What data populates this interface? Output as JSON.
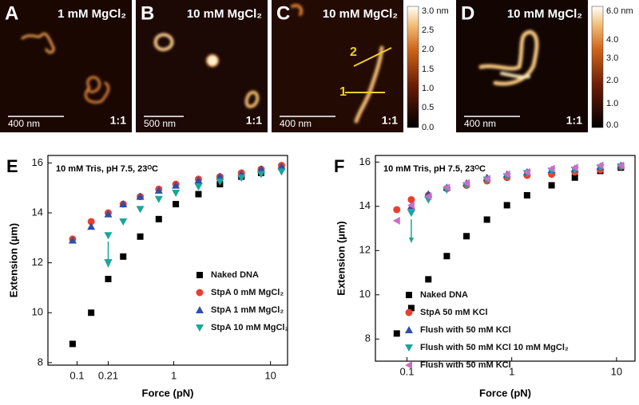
{
  "panels": [
    {
      "letter": "A",
      "condition": "1 mM MgCl₂",
      "scale_bar": "400 nm",
      "ratio": "1:1"
    },
    {
      "letter": "B",
      "condition": "10 mM MgCl₂",
      "scale_bar": "500 nm",
      "ratio": "1:1"
    },
    {
      "letter": "C",
      "condition": "10 mM MgCl₂",
      "scale_bar": "400 nm",
      "ratio": "1:1",
      "markers": [
        "1",
        "2"
      ]
    },
    {
      "letter": "D",
      "condition": "10 mM MgCl₂",
      "scale_bar": "400 nm",
      "ratio": "1:1"
    }
  ],
  "colorbars": [
    {
      "labels": [
        "3.0 nm",
        "2.5",
        "2.0",
        "1.5",
        "1.0",
        "0.5",
        "0.0"
      ]
    },
    {
      "labels": [
        "6.0 nm",
        "4.0",
        "3.0",
        "2.0",
        "1.0",
        "0.0"
      ]
    }
  ],
  "chart_data": [
    {
      "type": "scatter",
      "panel": "E",
      "subtitle": "10 mM Tris, pH 7.5, 23ᴼC",
      "x_label": "Force (pN)",
      "y_label": "Extension (µm)",
      "xscale": "log",
      "xlim": [
        0.05,
        15
      ],
      "xticks": [
        0.1,
        0.21,
        1,
        10
      ],
      "ylim": [
        7.9,
        16.3
      ],
      "yticks": [
        8,
        10,
        12,
        14,
        16
      ],
      "legend": "lower right",
      "series": [
        {
          "name": "Naked DNA",
          "color": "#000000",
          "marker": "square",
          "x": [
            0.09,
            0.14,
            0.21,
            0.3,
            0.45,
            0.7,
            1.05,
            1.8,
            3,
            5,
            8,
            13
          ],
          "values": [
            8.75,
            10.0,
            11.35,
            12.25,
            13.05,
            13.75,
            14.35,
            14.75,
            15.15,
            15.45,
            15.6,
            15.85
          ]
        },
        {
          "name": "StpA 0 mM MgCl₂",
          "color": "#e8402f",
          "marker": "circle",
          "x": [
            0.09,
            0.14,
            0.21,
            0.3,
            0.45,
            0.7,
            1.05,
            1.8,
            3,
            5,
            8,
            13
          ],
          "values": [
            12.95,
            13.65,
            14.0,
            14.35,
            14.65,
            14.95,
            15.15,
            15.35,
            15.45,
            15.6,
            15.75,
            15.9
          ]
        },
        {
          "name": "StpA 1 mM MgCl₂",
          "color": "#2f4ea8",
          "marker": "triangle",
          "x": [
            0.09,
            0.14,
            0.21,
            0.3,
            0.45,
            0.7,
            1.05,
            1.8,
            3,
            5,
            8,
            13
          ],
          "values": [
            12.9,
            13.45,
            13.95,
            14.35,
            14.65,
            14.9,
            15.1,
            15.3,
            15.45,
            15.55,
            15.75,
            15.85
          ]
        },
        {
          "name": "StpA 10 mM MgCl₂",
          "color": "#1aa59d",
          "marker": "triangle-down",
          "x": [
            0.21,
            0.3,
            0.45,
            0.7,
            1.05,
            1.8,
            3,
            5,
            8,
            13
          ],
          "values": [
            13.1,
            13.65,
            14.15,
            14.55,
            14.8,
            15.05,
            15.25,
            15.4,
            15.55,
            15.65
          ]
        }
      ]
    },
    {
      "type": "scatter",
      "panel": "F",
      "subtitle": "10 mM Tris, pH 7.5, 23ᴼC",
      "x_label": "Force (pN)",
      "y_label": "Extension (µm)",
      "xscale": "log",
      "xlim": [
        0.05,
        15
      ],
      "xticks": [
        0.1,
        1,
        10
      ],
      "ylim": [
        7,
        16.3
      ],
      "yticks": [
        8,
        10,
        12,
        14,
        16
      ],
      "legend": "lower right",
      "series": [
        {
          "name": "Naked DNA",
          "color": "#000000",
          "marker": "square",
          "x": [
            0.08,
            0.11,
            0.16,
            0.24,
            0.37,
            0.58,
            0.9,
            1.4,
            2.4,
            4,
            7,
            11
          ],
          "values": [
            8.25,
            9.4,
            10.7,
            11.75,
            12.65,
            13.4,
            14.05,
            14.5,
            14.95,
            15.3,
            15.6,
            15.75
          ]
        },
        {
          "name": "StpA 50 mM KCl",
          "color": "#e8402f",
          "marker": "circle",
          "x": [
            0.08,
            0.11,
            0.16,
            0.24,
            0.37,
            0.58,
            0.9,
            1.4,
            2.4,
            4,
            7,
            11
          ],
          "values": [
            13.85,
            14.3,
            14.5,
            14.8,
            14.95,
            15.15,
            15.3,
            15.4,
            15.45,
            15.55,
            15.65,
            15.8
          ]
        },
        {
          "name": "Flush with 50 mM KCl",
          "color": "#2f4ea8",
          "marker": "triangle",
          "x": [
            0.11,
            0.16,
            0.24,
            0.37,
            0.58,
            0.9,
            1.4,
            2.4,
            4,
            7,
            11
          ],
          "values": [
            14.0,
            14.55,
            14.85,
            15.05,
            15.3,
            15.45,
            15.55,
            15.65,
            15.7,
            15.8,
            15.85
          ]
        },
        {
          "name": "Flush with 50 mM KCl 10 mM MgCl₂",
          "color": "#1aa59d",
          "marker": "triangle-down",
          "x": [
            0.11,
            0.16,
            0.24,
            0.37,
            0.58,
            0.9,
            1.4,
            2.4,
            4,
            7,
            11
          ],
          "values": [
            13.7,
            14.3,
            14.75,
            14.95,
            15.2,
            15.35,
            15.5,
            15.6,
            15.65,
            15.75,
            15.8
          ]
        },
        {
          "name": "Flush with 50 mM KCl",
          "color": "#c86fc4",
          "marker": "triangle-left",
          "x": [
            0.08,
            0.11,
            0.16,
            0.24,
            0.37,
            0.58,
            0.9,
            1.4,
            2.4,
            4,
            7,
            11
          ],
          "values": [
            13.35,
            14.05,
            14.45,
            14.85,
            15.05,
            15.25,
            15.45,
            15.55,
            15.7,
            15.75,
            15.85,
            15.85
          ]
        }
      ]
    }
  ]
}
